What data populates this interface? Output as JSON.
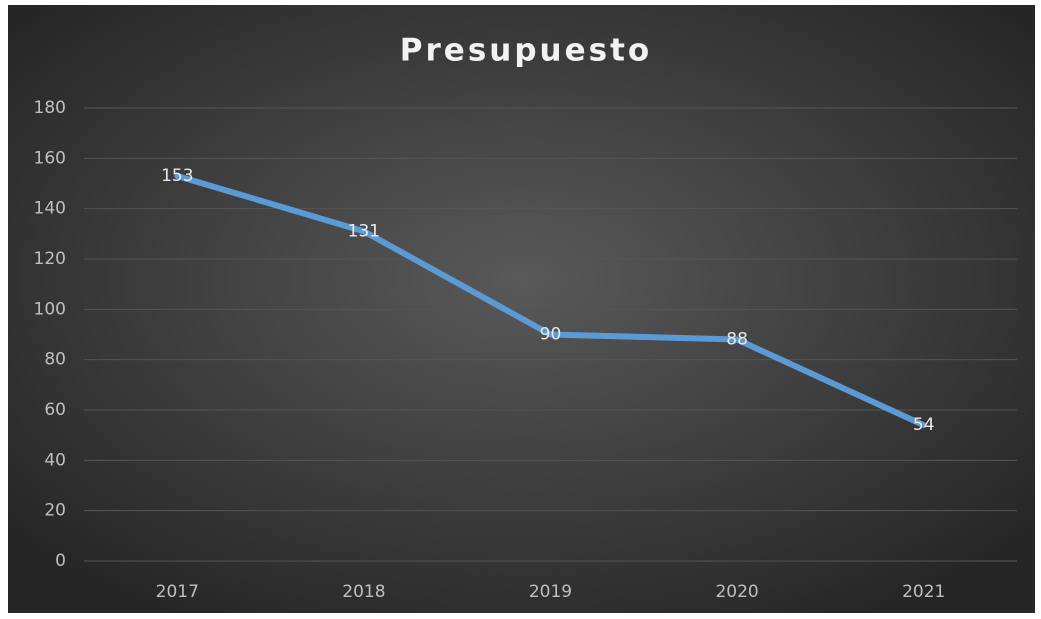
{
  "chart_data": {
    "type": "line",
    "title": "Presupuesto",
    "categories": [
      "2017",
      "2018",
      "2019",
      "2020",
      "2021"
    ],
    "values": [
      153,
      131,
      90,
      88,
      54
    ],
    "color": "#5b9bd5",
    "ylim": [
      0,
      180
    ],
    "yticks": [
      0,
      20,
      40,
      60,
      80,
      100,
      120,
      140,
      160,
      180
    ],
    "grid": true
  }
}
